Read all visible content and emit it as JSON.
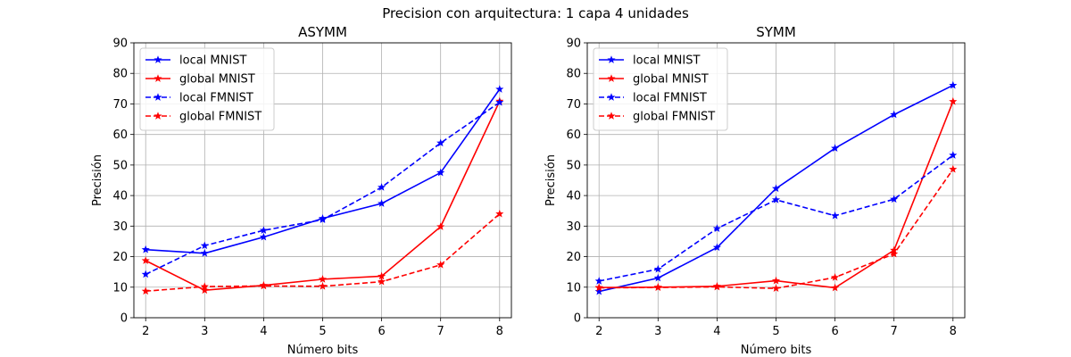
{
  "figure": {
    "suptitle": "Precision con arquitectura: 1 capa 4 unidades"
  },
  "chart_data": [
    {
      "type": "line",
      "title": "ASYMM",
      "xlabel": "Número bits",
      "ylabel": "Precisión",
      "x": [
        2,
        3,
        4,
        5,
        6,
        7,
        8
      ],
      "xticks": [
        "2",
        "3",
        "4",
        "5",
        "6",
        "7",
        "8"
      ],
      "yticks": [
        "0",
        "10",
        "20",
        "30",
        "40",
        "50",
        "60",
        "70",
        "80",
        "90"
      ],
      "xlim": [
        1.8,
        8.2
      ],
      "ylim": [
        0,
        90
      ],
      "grid": true,
      "legend_position": "top-left",
      "series": [
        {
          "name": "local MNIST",
          "color": "#0000ff",
          "dash": "solid",
          "marker": "star",
          "values": [
            22.3,
            21.1,
            26.4,
            32.5,
            37.4,
            47.5,
            74.8
          ]
        },
        {
          "name": "global MNIST",
          "color": "#ff0000",
          "dash": "solid",
          "marker": "star",
          "values": [
            18.7,
            9.0,
            10.6,
            12.6,
            13.6,
            29.8,
            70.9
          ]
        },
        {
          "name": "local FMNIST",
          "color": "#0000ff",
          "dash": "dashed",
          "marker": "star",
          "values": [
            14.2,
            23.6,
            28.6,
            32.1,
            42.7,
            57.2,
            70.5
          ]
        },
        {
          "name": "global FMNIST",
          "color": "#ff0000",
          "dash": "dashed",
          "marker": "star",
          "values": [
            8.7,
            10.2,
            10.4,
            10.3,
            11.8,
            17.3,
            34.0
          ]
        }
      ]
    },
    {
      "type": "line",
      "title": "SYMM",
      "xlabel": "Número bits",
      "ylabel": "Precisión",
      "x": [
        2,
        3,
        4,
        5,
        6,
        7,
        8
      ],
      "xticks": [
        "2",
        "3",
        "4",
        "5",
        "6",
        "7",
        "8"
      ],
      "yticks": [
        "0",
        "10",
        "20",
        "30",
        "40",
        "50",
        "60",
        "70",
        "80",
        "90"
      ],
      "xlim": [
        1.8,
        8.2
      ],
      "ylim": [
        0,
        90
      ],
      "grid": true,
      "legend_position": "top-left",
      "series": [
        {
          "name": "local MNIST",
          "color": "#0000ff",
          "dash": "solid",
          "marker": "star",
          "values": [
            8.6,
            13.0,
            23.0,
            42.3,
            55.5,
            66.5,
            76.1
          ]
        },
        {
          "name": "global MNIST",
          "color": "#ff0000",
          "dash": "solid",
          "marker": "star",
          "values": [
            9.9,
            10.0,
            10.3,
            12.1,
            9.8,
            22.1,
            70.8
          ]
        },
        {
          "name": "local FMNIST",
          "color": "#0000ff",
          "dash": "dashed",
          "marker": "star",
          "values": [
            12.0,
            15.9,
            29.2,
            38.6,
            33.4,
            38.8,
            53.2
          ]
        },
        {
          "name": "global FMNIST",
          "color": "#ff0000",
          "dash": "dashed",
          "marker": "star",
          "values": [
            9.8,
            9.9,
            10.1,
            9.6,
            13.2,
            20.9,
            48.6
          ]
        }
      ]
    }
  ]
}
